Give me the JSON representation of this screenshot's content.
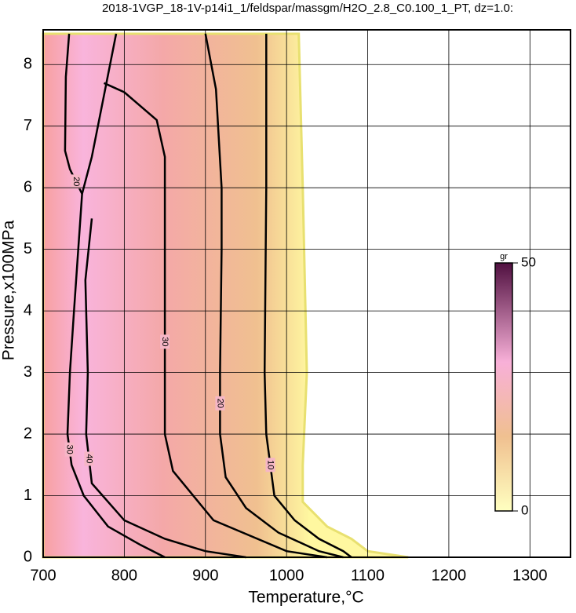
{
  "chart_data": {
    "type": "contour",
    "title": "2018-1VGP_18-1V-p14i1_1/feldspar/massgm/H2O_2.8_C0.100_1_PT, dz=1.0:",
    "xlabel": "Temperature,°C",
    "ylabel": "Pressure,x100MPa",
    "xlim": [
      700,
      1350
    ],
    "ylim": [
      0,
      8.5
    ],
    "xticks": [
      700,
      800,
      900,
      1000,
      1100,
      1200,
      1300
    ],
    "yticks": [
      0,
      1,
      2,
      3,
      4,
      5,
      6,
      7,
      8
    ],
    "grid": true,
    "data_edge": {
      "x": [
        700,
        1015,
        1020,
        1025,
        1020,
        1020,
        1050,
        1080,
        1100,
        1150,
        700
      ],
      "y": [
        8.5,
        8.5,
        6,
        3,
        1.5,
        0.9,
        0.5,
        0.3,
        0.1,
        0,
        0
      ]
    },
    "contours": [
      {
        "level": 10,
        "x": [
          975,
          975,
          973,
          975,
          985,
          1010,
          1040,
          1070,
          1080
        ],
        "y": [
          8.5,
          6,
          3,
          2,
          1,
          0.6,
          0.3,
          0.1,
          0
        ]
      },
      {
        "level": 20,
        "x": [
          900,
          913,
          920,
          920,
          918,
          918,
          925,
          950,
          990,
          1040,
          1070
        ],
        "y": [
          8.5,
          7.6,
          6,
          5,
          3,
          2,
          1.3,
          0.8,
          0.4,
          0.1,
          0
        ]
      },
      {
        "level": 30,
        "x": [
          775,
          800,
          840,
          850,
          850,
          850,
          860,
          910,
          1000,
          1050
        ],
        "y": [
          7.7,
          7.55,
          7.1,
          6.5,
          5,
          2,
          1.4,
          0.6,
          0.1,
          0
        ]
      },
      {
        "level": 20,
        "x": [
          732,
          728,
          727,
          733,
          748,
          760,
          775,
          790
        ],
        "y": [
          8.5,
          7.8,
          6.6,
          6.3,
          5.9,
          6.5,
          7.5,
          8.5
        ]
      },
      {
        "level": 30,
        "x": [
          748,
          738,
          733,
          730,
          735,
          750,
          780,
          820,
          850
        ],
        "y": [
          5.9,
          4,
          3,
          2,
          1.5,
          1,
          0.5,
          0.2,
          0
        ]
      },
      {
        "level": 40,
        "x": [
          760,
          752,
          755,
          753,
          760,
          800,
          850,
          900,
          950
        ],
        "y": [
          5.5,
          4.5,
          3,
          2,
          1.2,
          0.6,
          0.3,
          0.1,
          0
        ]
      }
    ],
    "colorbar": {
      "label": "gr",
      "lim": [
        0,
        50
      ],
      "ticks": [
        0,
        50
      ]
    }
  }
}
